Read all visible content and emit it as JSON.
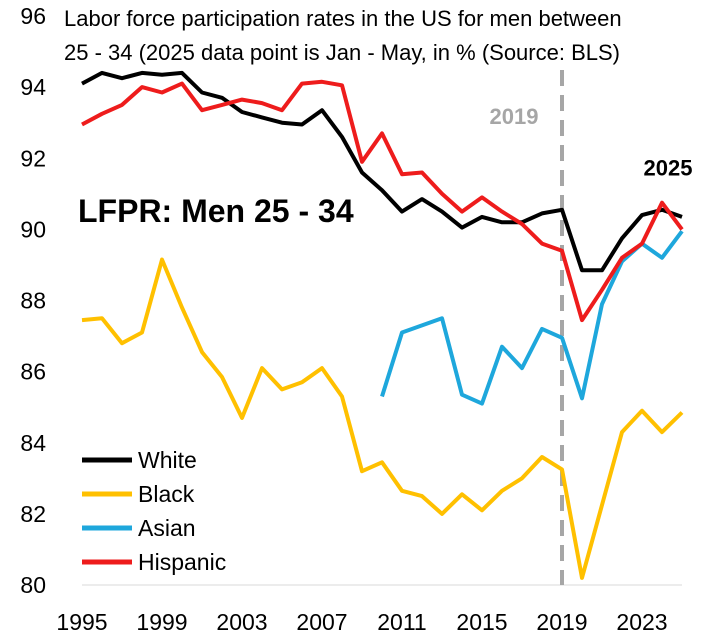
{
  "chart_data": {
    "type": "line",
    "title_lines": [
      "Labor force participation rates in the US for men between",
      "25 - 34 (2025 data point is Jan - May, in % (Source: BLS)"
    ],
    "inner_label": "LFPR: Men 25 - 34",
    "ylim": [
      80,
      96
    ],
    "yticks": [
      80,
      82,
      84,
      86,
      88,
      90,
      92,
      94,
      96
    ],
    "xlim": [
      1995,
      2025
    ],
    "xticks": [
      1995,
      1999,
      2003,
      2007,
      2011,
      2015,
      2019,
      2023
    ],
    "vline": {
      "x": 2019,
      "label": "2019",
      "color": "#a6a6a6"
    },
    "end_label": {
      "text": "2025",
      "x": 2024.5,
      "y": 91.4
    },
    "legend_position": "bottom-left",
    "series": [
      {
        "name": "White",
        "color": "#000000",
        "x": [
          1995,
          1996,
          1997,
          1998,
          1999,
          2000,
          2001,
          2002,
          2003,
          2004,
          2005,
          2006,
          2007,
          2008,
          2009,
          2010,
          2011,
          2012,
          2013,
          2014,
          2015,
          2016,
          2017,
          2018,
          2019,
          2020,
          2021,
          2022,
          2023,
          2024,
          2025
        ],
        "values": [
          94.1,
          94.4,
          94.25,
          94.4,
          94.35,
          94.4,
          93.85,
          93.7,
          93.3,
          93.15,
          93.0,
          92.95,
          93.35,
          92.6,
          91.6,
          91.1,
          90.5,
          90.85,
          90.5,
          90.05,
          90.35,
          90.2,
          90.2,
          90.45,
          90.55,
          88.85,
          88.85,
          89.75,
          90.4,
          90.55,
          90.35
        ]
      },
      {
        "name": "Black",
        "color": "#ffc000",
        "x": [
          1995,
          1996,
          1997,
          1998,
          1999,
          2000,
          2001,
          2002,
          2003,
          2004,
          2005,
          2006,
          2007,
          2008,
          2009,
          2010,
          2011,
          2012,
          2013,
          2014,
          2015,
          2016,
          2017,
          2018,
          2019,
          2020,
          2021,
          2022,
          2023,
          2024,
          2025
        ],
        "values": [
          87.45,
          87.5,
          86.8,
          87.1,
          89.15,
          87.8,
          86.55,
          85.85,
          84.7,
          86.1,
          85.5,
          85.7,
          86.1,
          85.3,
          83.2,
          83.45,
          82.65,
          82.5,
          82.0,
          82.55,
          82.1,
          82.65,
          83.0,
          83.6,
          83.25,
          80.2,
          82.25,
          84.3,
          84.9,
          84.3,
          84.85
        ]
      },
      {
        "name": "Asian",
        "color": "#1ea7dc",
        "x": [
          2010,
          2011,
          2012,
          2013,
          2014,
          2015,
          2016,
          2017,
          2018,
          2019,
          2020,
          2021,
          2022,
          2023,
          2024,
          2025
        ],
        "values": [
          85.3,
          87.1,
          87.3,
          87.5,
          85.35,
          85.1,
          86.7,
          86.1,
          87.2,
          86.95,
          85.25,
          87.9,
          89.1,
          89.6,
          89.2,
          89.95
        ]
      },
      {
        "name": "Hispanic",
        "color": "#ee1c1c",
        "x": [
          1995,
          1996,
          1997,
          1998,
          1999,
          2000,
          2001,
          2002,
          2003,
          2004,
          2005,
          2006,
          2007,
          2008,
          2009,
          2010,
          2011,
          2012,
          2013,
          2014,
          2015,
          2016,
          2017,
          2018,
          2019,
          2020,
          2021,
          2022,
          2023,
          2024,
          2025
        ],
        "values": [
          92.95,
          93.25,
          93.5,
          94.0,
          93.85,
          94.1,
          93.35,
          93.5,
          93.65,
          93.55,
          93.35,
          94.1,
          94.15,
          94.05,
          91.9,
          92.7,
          91.55,
          91.6,
          91.0,
          90.5,
          90.9,
          90.5,
          90.15,
          89.6,
          89.4,
          87.45,
          88.3,
          89.2,
          89.6,
          90.75,
          90.0
        ]
      }
    ]
  }
}
